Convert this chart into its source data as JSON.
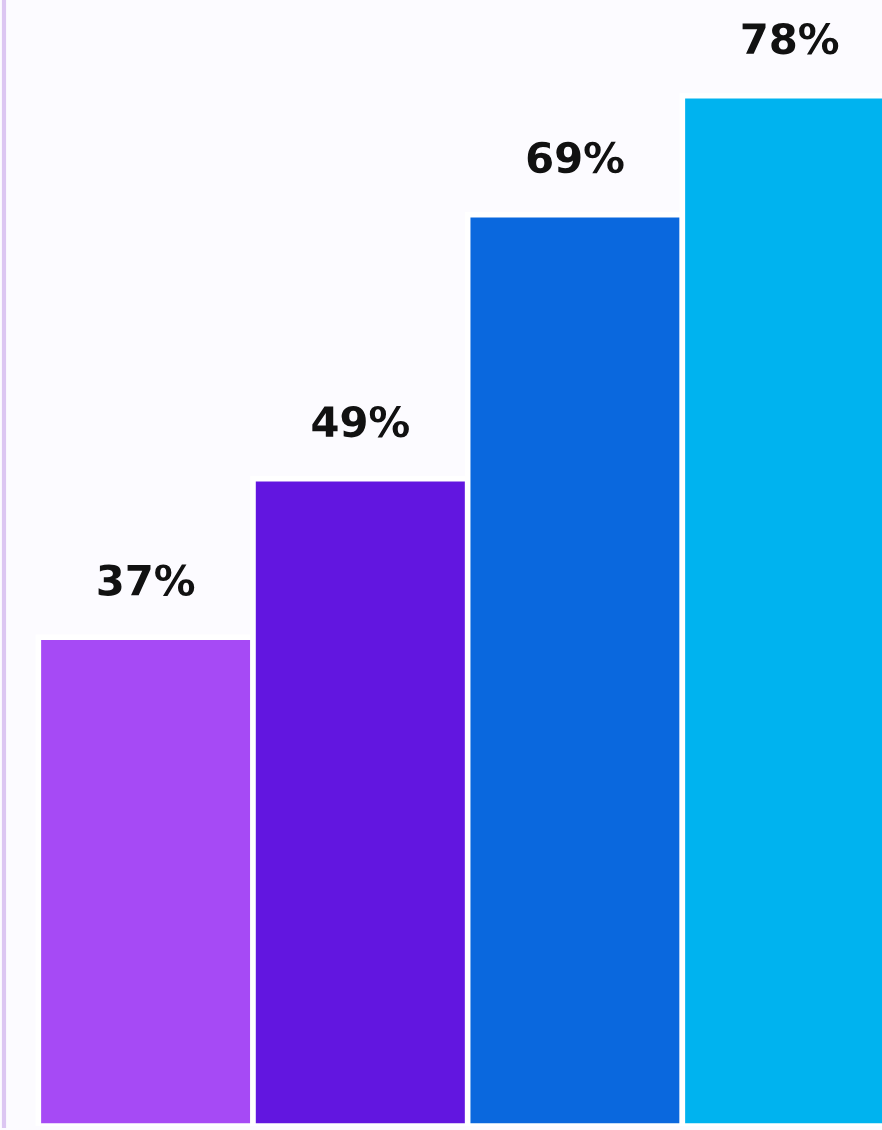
{
  "chart_data": {
    "type": "bar",
    "categories": [
      null,
      null,
      null,
      null
    ],
    "values": [
      37,
      49,
      69,
      78
    ],
    "value_labels": [
      "37%",
      "49%",
      "69%",
      "78%"
    ],
    "colors": [
      "#a64af5",
      "#6216e0",
      "#0a68de",
      "#00b3ef"
    ],
    "grid": false,
    "legend": false
  }
}
